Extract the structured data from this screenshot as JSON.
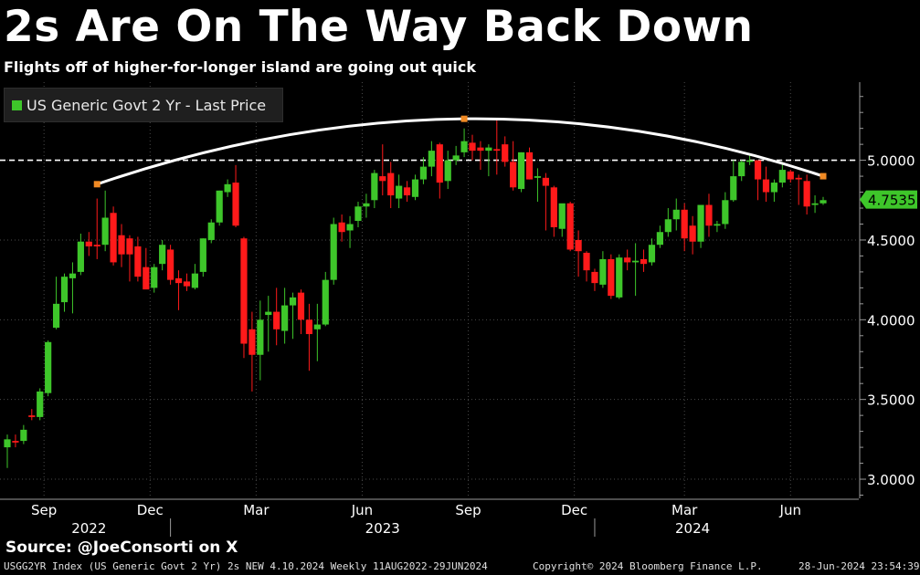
{
  "title": "2s Are On The Way Back Down",
  "subtitle": "Flights off of higher-for-longer island are going out quick",
  "source": "Source: @JoeConsorti on X",
  "footer": {
    "left": "USGG2YR Index (US Generic Govt 2 Yr) 2s NEW 4.10.2024  Weekly 11AUG2022-29JUN2024",
    "center": "Copyright© 2024 Bloomberg Finance L.P.",
    "right": "28-Jun-2024 23:54:39"
  },
  "chart_data": {
    "type": "candlestick",
    "series_name": "US Generic Govt 2 Yr - Last Price",
    "ylim": [
      2.88,
      5.49
    ],
    "yticks": [
      3.0,
      3.5,
      4.0,
      4.5,
      5.0
    ],
    "ytick_labels": [
      "3.0000",
      "3.5000",
      "4.0000",
      "4.5000",
      "5.0000"
    ],
    "last_value": 4.7535,
    "last_value_label": "4.7535",
    "reference_line": 5.0,
    "month_labels": [
      "Sep",
      "Dec",
      "Mar",
      "Jun",
      "Sep",
      "Dec",
      "Mar",
      "Jun"
    ],
    "month_label_week": [
      4.5,
      17.5,
      30.5,
      43.5,
      56.5,
      69.5,
      83,
      96
    ],
    "year_labels": [
      "2022",
      "2023",
      "2024"
    ],
    "year_label_week": [
      10,
      46,
      84
    ],
    "year_divider_week": [
      20,
      72
    ],
    "arc_points": [
      [
        11,
        4.85
      ],
      [
        56,
        5.26
      ],
      [
        100,
        4.9
      ]
    ],
    "colors": {
      "up": "#3ec62a",
      "down": "#ff1a1a",
      "axis": "#9a9a9a",
      "grid": "#4a4a4a",
      "marker": "#f08a24",
      "last_label_bg": "#3ec62a"
    },
    "candles": [
      {
        "o": 3.2,
        "h": 3.28,
        "l": 3.07,
        "c": 3.25
      },
      {
        "o": 3.24,
        "h": 3.28,
        "l": 3.2,
        "c": 3.23
      },
      {
        "o": 3.24,
        "h": 3.34,
        "l": 3.22,
        "c": 3.31
      },
      {
        "o": 3.4,
        "h": 3.44,
        "l": 3.37,
        "c": 3.39
      },
      {
        "o": 3.39,
        "h": 3.57,
        "l": 3.37,
        "c": 3.55
      },
      {
        "o": 3.54,
        "h": 3.87,
        "l": 3.52,
        "c": 3.86
      },
      {
        "o": 3.95,
        "h": 4.27,
        "l": 3.94,
        "c": 4.1
      },
      {
        "o": 4.11,
        "h": 4.29,
        "l": 4.05,
        "c": 4.27
      },
      {
        "o": 4.26,
        "h": 4.36,
        "l": 4.04,
        "c": 4.29
      },
      {
        "o": 4.3,
        "h": 4.54,
        "l": 4.28,
        "c": 4.49
      },
      {
        "o": 4.49,
        "h": 4.55,
        "l": 4.4,
        "c": 4.46
      },
      {
        "o": 4.47,
        "h": 4.76,
        "l": 4.38,
        "c": 4.46
      },
      {
        "o": 4.47,
        "h": 4.81,
        "l": 4.43,
        "c": 4.64
      },
      {
        "o": 4.67,
        "h": 4.71,
        "l": 4.34,
        "c": 4.36
      },
      {
        "o": 4.53,
        "h": 4.6,
        "l": 4.33,
        "c": 4.41
      },
      {
        "o": 4.51,
        "h": 4.53,
        "l": 4.24,
        "c": 4.41
      },
      {
        "o": 4.46,
        "h": 4.52,
        "l": 4.24,
        "c": 4.27
      },
      {
        "o": 4.33,
        "h": 4.45,
        "l": 4.2,
        "c": 4.19
      },
      {
        "o": 4.2,
        "h": 4.35,
        "l": 4.17,
        "c": 4.33
      },
      {
        "o": 4.35,
        "h": 4.5,
        "l": 4.31,
        "c": 4.47
      },
      {
        "o": 4.44,
        "h": 4.47,
        "l": 4.22,
        "c": 4.25
      },
      {
        "o": 4.26,
        "h": 4.31,
        "l": 4.06,
        "c": 4.23
      },
      {
        "o": 4.24,
        "h": 4.29,
        "l": 4.18,
        "c": 4.21
      },
      {
        "o": 4.2,
        "h": 4.35,
        "l": 4.19,
        "c": 4.29
      },
      {
        "o": 4.3,
        "h": 4.51,
        "l": 4.27,
        "c": 4.51
      },
      {
        "o": 4.5,
        "h": 4.63,
        "l": 4.48,
        "c": 4.61
      },
      {
        "o": 4.61,
        "h": 4.81,
        "l": 4.59,
        "c": 4.81
      },
      {
        "o": 4.8,
        "h": 4.88,
        "l": 4.77,
        "c": 4.85
      },
      {
        "o": 4.86,
        "h": 4.97,
        "l": 4.58,
        "c": 4.59
      },
      {
        "o": 4.51,
        "h": 4.52,
        "l": 3.76,
        "c": 3.85
      },
      {
        "o": 3.94,
        "h": 4.05,
        "l": 3.55,
        "c": 3.78
      },
      {
        "o": 3.78,
        "h": 4.12,
        "l": 3.62,
        "c": 4.0
      },
      {
        "o": 4.03,
        "h": 4.15,
        "l": 3.8,
        "c": 4.05
      },
      {
        "o": 4.05,
        "h": 4.2,
        "l": 3.84,
        "c": 3.94
      },
      {
        "o": 3.93,
        "h": 4.2,
        "l": 3.85,
        "c": 4.09
      },
      {
        "o": 4.09,
        "h": 4.17,
        "l": 3.88,
        "c": 4.14
      },
      {
        "o": 4.17,
        "h": 4.19,
        "l": 3.91,
        "c": 4.0
      },
      {
        "o": 4.0,
        "h": 4.1,
        "l": 3.68,
        "c": 3.91
      },
      {
        "o": 3.94,
        "h": 4.1,
        "l": 3.74,
        "c": 3.97
      },
      {
        "o": 3.97,
        "h": 4.3,
        "l": 3.96,
        "c": 4.25
      },
      {
        "o": 4.25,
        "h": 4.64,
        "l": 4.22,
        "c": 4.6
      },
      {
        "o": 4.61,
        "h": 4.66,
        "l": 4.49,
        "c": 4.55
      },
      {
        "o": 4.56,
        "h": 4.65,
        "l": 4.45,
        "c": 4.6
      },
      {
        "o": 4.62,
        "h": 4.74,
        "l": 4.58,
        "c": 4.71
      },
      {
        "o": 4.71,
        "h": 4.79,
        "l": 4.64,
        "c": 4.73
      },
      {
        "o": 4.75,
        "h": 4.94,
        "l": 4.7,
        "c": 4.92
      },
      {
        "o": 4.9,
        "h": 5.1,
        "l": 4.78,
        "c": 4.87
      },
      {
        "o": 4.92,
        "h": 4.99,
        "l": 4.7,
        "c": 4.78
      },
      {
        "o": 4.76,
        "h": 4.91,
        "l": 4.7,
        "c": 4.84
      },
      {
        "o": 4.83,
        "h": 4.87,
        "l": 4.74,
        "c": 4.78
      },
      {
        "o": 4.77,
        "h": 4.91,
        "l": 4.75,
        "c": 4.88
      },
      {
        "o": 4.88,
        "h": 5.02,
        "l": 4.85,
        "c": 4.96
      },
      {
        "o": 4.96,
        "h": 5.12,
        "l": 4.9,
        "c": 5.06
      },
      {
        "o": 5.1,
        "h": 5.11,
        "l": 4.76,
        "c": 4.86
      },
      {
        "o": 4.87,
        "h": 5.06,
        "l": 4.82,
        "c": 5.0
      },
      {
        "o": 5.0,
        "h": 5.09,
        "l": 4.97,
        "c": 5.03
      },
      {
        "o": 5.05,
        "h": 5.2,
        "l": 5.02,
        "c": 5.12
      },
      {
        "o": 5.11,
        "h": 5.16,
        "l": 5.0,
        "c": 5.06
      },
      {
        "o": 5.08,
        "h": 5.12,
        "l": 4.94,
        "c": 5.06
      },
      {
        "o": 5.06,
        "h": 5.1,
        "l": 4.9,
        "c": 5.08
      },
      {
        "o": 5.07,
        "h": 5.26,
        "l": 4.91,
        "c": 5.06
      },
      {
        "o": 5.1,
        "h": 5.15,
        "l": 4.96,
        "c": 4.99
      },
      {
        "o": 4.99,
        "h": 5.12,
        "l": 4.81,
        "c": 4.83
      },
      {
        "o": 4.82,
        "h": 5.05,
        "l": 4.8,
        "c": 5.05
      },
      {
        "o": 5.05,
        "h": 5.08,
        "l": 4.88,
        "c": 4.88
      },
      {
        "o": 4.89,
        "h": 4.95,
        "l": 4.74,
        "c": 4.9
      },
      {
        "o": 4.89,
        "h": 4.92,
        "l": 4.56,
        "c": 4.84
      },
      {
        "o": 4.83,
        "h": 4.84,
        "l": 4.52,
        "c": 4.58
      },
      {
        "o": 4.57,
        "h": 4.72,
        "l": 4.52,
        "c": 4.73
      },
      {
        "o": 4.73,
        "h": 4.74,
        "l": 4.43,
        "c": 4.44
      },
      {
        "o": 4.5,
        "h": 4.56,
        "l": 4.27,
        "c": 4.43
      },
      {
        "o": 4.42,
        "h": 4.43,
        "l": 4.24,
        "c": 4.31
      },
      {
        "o": 4.3,
        "h": 4.32,
        "l": 4.18,
        "c": 4.23
      },
      {
        "o": 4.22,
        "h": 4.43,
        "l": 4.2,
        "c": 4.38
      },
      {
        "o": 4.38,
        "h": 4.41,
        "l": 4.13,
        "c": 4.15
      },
      {
        "o": 4.14,
        "h": 4.41,
        "l": 4.13,
        "c": 4.39
      },
      {
        "o": 4.39,
        "h": 4.44,
        "l": 4.31,
        "c": 4.36
      },
      {
        "o": 4.36,
        "h": 4.48,
        "l": 4.15,
        "c": 4.37
      },
      {
        "o": 4.38,
        "h": 4.44,
        "l": 4.3,
        "c": 4.35
      },
      {
        "o": 4.36,
        "h": 4.51,
        "l": 4.34,
        "c": 4.47
      },
      {
        "o": 4.47,
        "h": 4.59,
        "l": 4.45,
        "c": 4.55
      },
      {
        "o": 4.55,
        "h": 4.7,
        "l": 4.52,
        "c": 4.63
      },
      {
        "o": 4.63,
        "h": 4.76,
        "l": 4.56,
        "c": 4.69
      },
      {
        "o": 4.69,
        "h": 4.73,
        "l": 4.43,
        "c": 4.51
      },
      {
        "o": 4.59,
        "h": 4.65,
        "l": 4.41,
        "c": 4.49
      },
      {
        "o": 4.49,
        "h": 4.71,
        "l": 4.45,
        "c": 4.72
      },
      {
        "o": 4.72,
        "h": 4.79,
        "l": 4.52,
        "c": 4.59
      },
      {
        "o": 4.59,
        "h": 4.62,
        "l": 4.55,
        "c": 4.6
      },
      {
        "o": 4.6,
        "h": 4.8,
        "l": 4.57,
        "c": 4.75
      },
      {
        "o": 4.75,
        "h": 5.0,
        "l": 4.74,
        "c": 4.9
      },
      {
        "o": 4.9,
        "h": 5.0,
        "l": 4.87,
        "c": 4.99
      },
      {
        "o": 4.99,
        "h": 5.03,
        "l": 4.97,
        "c": 5.0
      },
      {
        "o": 5.0,
        "h": 5.0,
        "l": 4.75,
        "c": 4.88
      },
      {
        "o": 4.88,
        "h": 4.96,
        "l": 4.74,
        "c": 4.8
      },
      {
        "o": 4.8,
        "h": 4.88,
        "l": 4.74,
        "c": 4.86
      },
      {
        "o": 4.86,
        "h": 4.99,
        "l": 4.83,
        "c": 4.94
      },
      {
        "o": 4.93,
        "h": 4.94,
        "l": 4.86,
        "c": 4.88
      },
      {
        "o": 4.89,
        "h": 4.91,
        "l": 4.72,
        "c": 4.88
      },
      {
        "o": 4.87,
        "h": 4.91,
        "l": 4.66,
        "c": 4.71
      },
      {
        "o": 4.72,
        "h": 4.78,
        "l": 4.67,
        "c": 4.73
      },
      {
        "o": 4.73,
        "h": 4.77,
        "l": 4.72,
        "c": 4.75
      }
    ]
  }
}
